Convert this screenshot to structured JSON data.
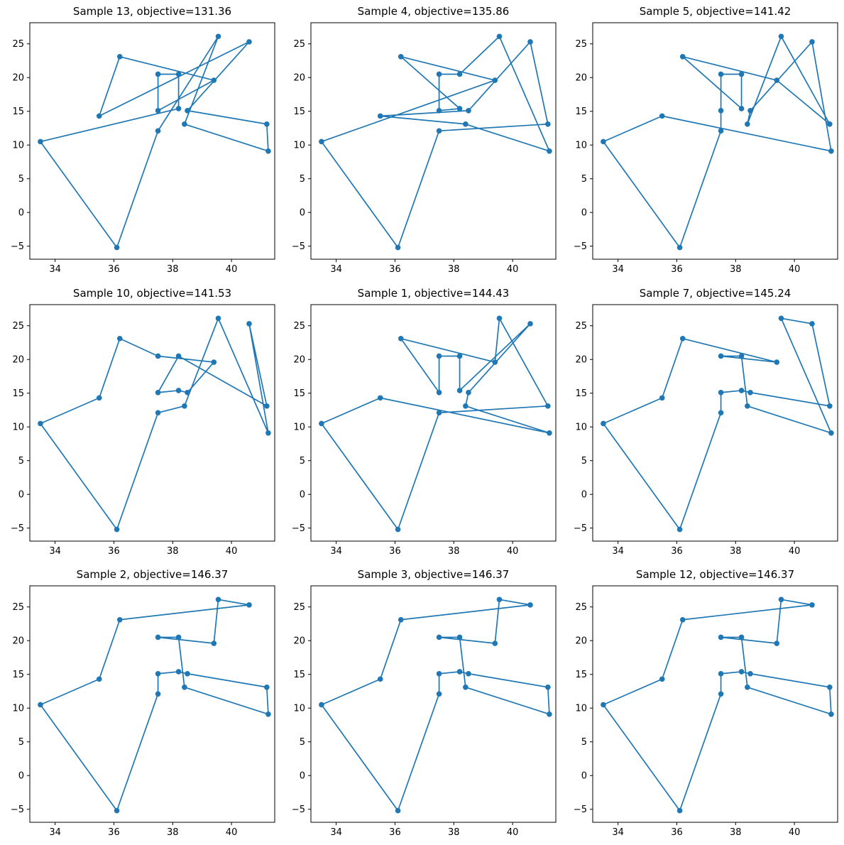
{
  "figure": {
    "background": "#ffffff",
    "accent_color": "#1f77b4",
    "spine_color": "#000000",
    "rows": 3,
    "cols": 3,
    "marker_radius": 3.8,
    "line_width": 1.7
  },
  "axes": {
    "xticks": [
      34,
      36,
      38,
      40
    ],
    "yticks": [
      -5,
      0,
      5,
      10,
      15,
      20,
      25
    ],
    "xlim": [
      33.14,
      41.47
    ],
    "ylim": [
      -6.93,
      28.13
    ],
    "grid": false
  },
  "chart_data": {
    "type": "line",
    "note": "3x3 grid of TSP tour plots; all subplots share the same 16 city coordinates, each drawn as a closed scatter+line tour",
    "cities": [
      [
        33.5,
        10.5
      ],
      [
        36.1,
        -5.2
      ],
      [
        36.2,
        23.1
      ],
      [
        35.5,
        14.3
      ],
      [
        37.5,
        20.5
      ],
      [
        37.5,
        15.1
      ],
      [
        37.5,
        12.1
      ],
      [
        38.2,
        20.5
      ],
      [
        38.2,
        15.4
      ],
      [
        38.5,
        15.1
      ],
      [
        38.4,
        13.1
      ],
      [
        39.55,
        26.1
      ],
      [
        39.4,
        19.6
      ],
      [
        40.6,
        25.3
      ],
      [
        41.2,
        13.1
      ],
      [
        41.25,
        9.1
      ]
    ],
    "subplots": [
      {
        "title": "Sample 13, objective=131.36",
        "sample": 13,
        "objective": 131.36,
        "tour": [
          0,
          1,
          6,
          11,
          10,
          15,
          14,
          9,
          13,
          3,
          2,
          12,
          5,
          4,
          7,
          8
        ]
      },
      {
        "title": "Sample 4, objective=135.86",
        "sample": 4,
        "objective": 135.86,
        "tour": [
          0,
          1,
          6,
          14,
          13,
          9,
          3,
          10,
          15,
          11,
          7,
          4,
          5,
          8,
          2,
          12
        ]
      },
      {
        "title": "Sample 5, objective=141.42",
        "sample": 5,
        "objective": 141.42,
        "tour": [
          0,
          1,
          6,
          5,
          4,
          7,
          8,
          2,
          12,
          14,
          11,
          10,
          9,
          13,
          15,
          3
        ]
      },
      {
        "title": "Sample 10, objective=141.53",
        "sample": 10,
        "objective": 141.53,
        "tour": [
          0,
          1,
          6,
          10,
          11,
          15,
          13,
          14,
          7,
          5,
          8,
          9,
          12,
          4,
          2,
          3
        ]
      },
      {
        "title": "Sample 1, objective=144.43",
        "sample": 1,
        "objective": 144.43,
        "tour": [
          0,
          1,
          6,
          14,
          11,
          12,
          2,
          5,
          4,
          7,
          8,
          13,
          9,
          10,
          15,
          3
        ]
      },
      {
        "title": "Sample 7, objective=145.24",
        "sample": 7,
        "objective": 145.24,
        "tour": [
          0,
          1,
          6,
          5,
          8,
          9,
          14,
          13,
          11,
          15,
          10,
          7,
          4,
          12,
          2,
          3
        ]
      },
      {
        "title": "Sample 2, objective=146.37",
        "sample": 2,
        "objective": 146.37,
        "tour": [
          0,
          1,
          6,
          5,
          8,
          9,
          14,
          15,
          10,
          7,
          4,
          12,
          11,
          13,
          2,
          3
        ]
      },
      {
        "title": "Sample 3, objective=146.37",
        "sample": 3,
        "objective": 146.37,
        "tour": [
          0,
          1,
          6,
          5,
          8,
          9,
          14,
          15,
          10,
          7,
          4,
          12,
          11,
          13,
          2,
          3
        ]
      },
      {
        "title": "Sample 12, objective=146.37",
        "sample": 12,
        "objective": 146.37,
        "tour": [
          0,
          1,
          6,
          5,
          8,
          9,
          14,
          15,
          10,
          7,
          4,
          12,
          11,
          13,
          2,
          3
        ]
      }
    ]
  }
}
